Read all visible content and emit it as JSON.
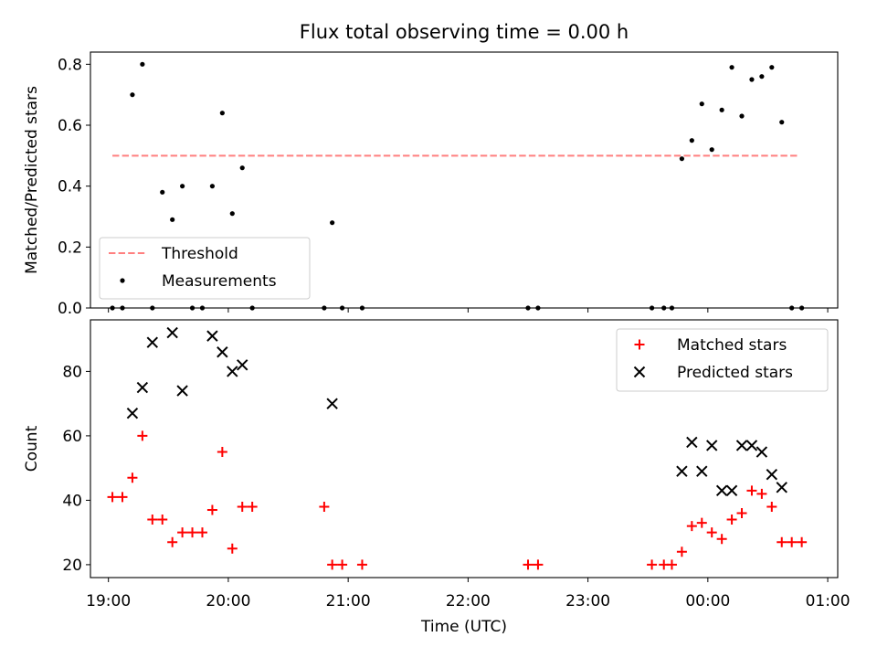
{
  "figure": {
    "title": "Flux total observing time = 0.00 h"
  },
  "chart_data": [
    {
      "type": "scatter",
      "ylabel": "Matched/Predicted stars",
      "xlabel": "",
      "xlim": [
        "18:51",
        "01:05"
      ],
      "ylim": [
        0,
        0.84
      ],
      "yticks": [
        "0.0",
        "0.2",
        "0.4",
        "0.6",
        "0.8"
      ],
      "grid": false,
      "legend": {
        "placement": "lower-left",
        "entries": [
          "Threshold",
          "Measurements"
        ]
      },
      "threshold": {
        "name": "Threshold",
        "value": 0.5,
        "x_start": "19:02",
        "x_end": "00:45",
        "color": "#ff7f7f",
        "style": "dashed"
      },
      "series": [
        {
          "name": "Measurements",
          "marker": "dot",
          "color": "#000000",
          "points": [
            [
              "19:02",
              0.0
            ],
            [
              "19:07",
              0.0
            ],
            [
              "19:12",
              0.7
            ],
            [
              "19:17",
              0.8
            ],
            [
              "19:22",
              0.0
            ],
            [
              "19:27",
              0.38
            ],
            [
              "19:32",
              0.29
            ],
            [
              "19:37",
              0.4
            ],
            [
              "19:42",
              0.0
            ],
            [
              "19:47",
              0.0
            ],
            [
              "19:52",
              0.4
            ],
            [
              "19:57",
              0.64
            ],
            [
              "20:02",
              0.31
            ],
            [
              "20:07",
              0.46
            ],
            [
              "20:12",
              0.0
            ],
            [
              "20:48",
              0.0
            ],
            [
              "20:52",
              0.28
            ],
            [
              "20:57",
              0.0
            ],
            [
              "21:07",
              0.0
            ],
            [
              "22:30",
              0.0
            ],
            [
              "22:35",
              0.0
            ],
            [
              "23:32",
              0.0
            ],
            [
              "23:38",
              0.0
            ],
            [
              "23:42",
              0.0
            ],
            [
              "23:47",
              0.49
            ],
            [
              "23:52",
              0.55
            ],
            [
              "23:57",
              0.67
            ],
            [
              "00:02",
              0.52
            ],
            [
              "00:07",
              0.65
            ],
            [
              "00:12",
              0.79
            ],
            [
              "00:17",
              0.63
            ],
            [
              "00:22",
              0.75
            ],
            [
              "00:27",
              0.76
            ],
            [
              "00:32",
              0.79
            ],
            [
              "00:37",
              0.61
            ],
            [
              "00:42",
              0.0
            ],
            [
              "00:47",
              0.0
            ]
          ]
        }
      ]
    },
    {
      "type": "scatter",
      "ylabel": "Count",
      "xlabel": "Time (UTC)",
      "xlim": [
        "18:51",
        "01:05"
      ],
      "ylim": [
        16,
        96
      ],
      "yticks": [
        "20",
        "40",
        "60",
        "80"
      ],
      "xticks": [
        "19:00",
        "20:00",
        "21:00",
        "22:00",
        "23:00",
        "00:00",
        "01:00"
      ],
      "grid": false,
      "legend": {
        "placement": "top-right",
        "entries": [
          "Matched stars",
          "Predicted stars"
        ]
      },
      "series": [
        {
          "name": "Matched stars",
          "marker": "plus",
          "color": "#ff0000",
          "points": [
            [
              "19:02",
              41
            ],
            [
              "19:07",
              41
            ],
            [
              "19:12",
              47
            ],
            [
              "19:17",
              60
            ],
            [
              "19:22",
              34
            ],
            [
              "19:27",
              34
            ],
            [
              "19:32",
              27
            ],
            [
              "19:37",
              30
            ],
            [
              "19:42",
              30
            ],
            [
              "19:47",
              30
            ],
            [
              "19:52",
              37
            ],
            [
              "19:57",
              55
            ],
            [
              "20:02",
              25
            ],
            [
              "20:07",
              38
            ],
            [
              "20:12",
              38
            ],
            [
              "20:48",
              38
            ],
            [
              "20:52",
              20
            ],
            [
              "20:57",
              20
            ],
            [
              "21:07",
              20
            ],
            [
              "22:30",
              20
            ],
            [
              "22:35",
              20
            ],
            [
              "23:32",
              20
            ],
            [
              "23:38",
              20
            ],
            [
              "23:42",
              20
            ],
            [
              "23:47",
              24
            ],
            [
              "23:52",
              32
            ],
            [
              "23:57",
              33
            ],
            [
              "00:02",
              30
            ],
            [
              "00:07",
              28
            ],
            [
              "00:12",
              34
            ],
            [
              "00:17",
              36
            ],
            [
              "00:22",
              43
            ],
            [
              "00:27",
              42
            ],
            [
              "00:32",
              38
            ],
            [
              "00:37",
              27
            ],
            [
              "00:42",
              27
            ],
            [
              "00:47",
              27
            ]
          ]
        },
        {
          "name": "Predicted stars",
          "marker": "x",
          "color": "#000000",
          "points": [
            [
              "19:12",
              67
            ],
            [
              "19:17",
              75
            ],
            [
              "19:22",
              89
            ],
            [
              "19:32",
              92
            ],
            [
              "19:37",
              74
            ],
            [
              "19:52",
              91
            ],
            [
              "19:57",
              86
            ],
            [
              "20:02",
              80
            ],
            [
              "20:07",
              82
            ],
            [
              "20:52",
              70
            ],
            [
              "23:47",
              49
            ],
            [
              "23:52",
              58
            ],
            [
              "23:57",
              49
            ],
            [
              "00:02",
              57
            ],
            [
              "00:07",
              43
            ],
            [
              "00:12",
              43
            ],
            [
              "00:17",
              57
            ],
            [
              "00:22",
              57
            ],
            [
              "00:27",
              55
            ],
            [
              "00:32",
              48
            ],
            [
              "00:37",
              44
            ]
          ]
        }
      ]
    }
  ]
}
